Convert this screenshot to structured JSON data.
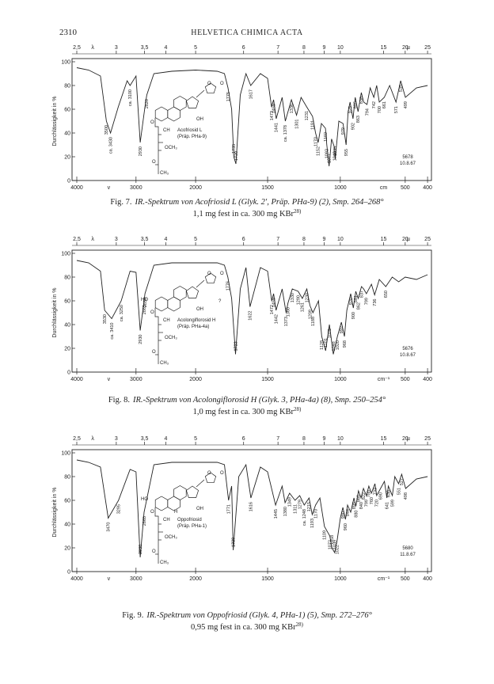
{
  "header": {
    "page_number": "2310",
    "journal": "HELVETICA CHIMICA ACTA"
  },
  "chart_data": [
    {
      "type": "line",
      "ylabel": "Durchlässigkeit in %",
      "xlabel": "v",
      "xunit": "cm",
      "x2label": "λ",
      "x2unit": "μ",
      "xlim": [
        4000,
        400
      ],
      "xticks": [
        4000,
        3000,
        2000,
        1500,
        1000,
        500,
        400
      ],
      "x2ticks": [
        {
          "value": 2.5,
          "label": "2,5"
        },
        3,
        {
          "value": 3.5,
          "label": "3,5"
        },
        4,
        5,
        6,
        7,
        8,
        9,
        10,
        15,
        20,
        25
      ],
      "ylim": [
        0,
        100
      ],
      "yticks": [
        0,
        20,
        40,
        60,
        80,
        100
      ],
      "color": "#222",
      "x": [
        4000,
        3800,
        3600,
        3500,
        3430,
        3300,
        3150,
        3100,
        3000,
        2930,
        2850,
        2820,
        2700,
        2400,
        2000,
        1850,
        1800,
        1775,
        1750,
        1735,
        1720,
        1690,
        1650,
        1617,
        1550,
        1500,
        1473,
        1459,
        1441,
        1400,
        1378,
        1336,
        1301,
        1270,
        1231,
        1191,
        1170,
        1152,
        1130,
        1102,
        1093,
        1077,
        1060,
        1040,
        1035,
        1010,
        979,
        955,
        940,
        925,
        902,
        885,
        863,
        838,
        820,
        794,
        770,
        742,
        720,
        700,
        661,
        620,
        571,
        535,
        499,
        450,
        400
      ],
      "values": [
        95,
        93,
        88,
        50,
        40,
        62,
        84,
        80,
        88,
        32,
        62,
        72,
        90,
        92,
        93,
        92,
        90,
        78,
        60,
        20,
        14,
        72,
        90,
        80,
        90,
        86,
        62,
        68,
        52,
        70,
        50,
        68,
        55,
        70,
        62,
        54,
        40,
        32,
        48,
        44,
        30,
        12,
        35,
        28,
        18,
        50,
        48,
        30,
        58,
        66,
        52,
        70,
        58,
        74,
        66,
        64,
        78,
        70,
        80,
        66,
        70,
        80,
        66,
        84,
        70,
        78,
        80
      ],
      "peak_x": [
        3500,
        3430,
        3100,
        2930,
        2820,
        1775,
        1735,
        1720,
        1617,
        1473,
        1459,
        1441,
        1378,
        1336,
        1301,
        1231,
        1191,
        1170,
        1152,
        1102,
        1093,
        1077,
        1040,
        1035,
        979,
        955,
        925,
        902,
        885,
        863,
        838,
        794,
        742,
        700,
        661,
        571,
        535,
        499
      ],
      "peak_labels": [
        "3500",
        "ca. 3430",
        "ca. 3100",
        "2930",
        "2820",
        "1775",
        "1735",
        "1720",
        "1617",
        "1473",
        "1459",
        "1441",
        "ca. 1378",
        "1336",
        "1301",
        "1231",
        "1191",
        "1170",
        "1152",
        "1102",
        "1093",
        "1077",
        "1040",
        "1035",
        "979",
        "955",
        "925",
        "902",
        "885",
        "863",
        "838",
        "794",
        "742",
        "700",
        "661",
        "571",
        "535",
        "499"
      ],
      "structure_labels": [
        "O",
        "O",
        "OH",
        "O",
        "CH",
        "OCH₃",
        "O",
        "CH₃",
        "Acofriosid L",
        "(Präp. PHa-9)"
      ],
      "stamp": [
        "5678",
        "10.8.67"
      ],
      "caption_label": "Fig. 7.",
      "caption": "IR.-Spektrum von Acofriosid L (Glyk. 2′, Präp. PHa-9) (2), Smp. 264–268°",
      "note": "1,1 mg fest in ca. 300 mg KBr",
      "note_ref": "28)"
    },
    {
      "type": "line",
      "ylabel": "Durchlässigkeit in %",
      "xlabel": "v",
      "xunit": "cm⁻¹",
      "x2label": "λ",
      "x2unit": "μ",
      "xlim": [
        4000,
        400
      ],
      "xticks": [
        4000,
        3000,
        2000,
        1500,
        1000,
        500,
        400
      ],
      "x2ticks": [
        {
          "value": 2.5,
          "label": "2,5"
        },
        3,
        {
          "value": 3.5,
          "label": "3,5"
        },
        4,
        5,
        6,
        7,
        8,
        9,
        10,
        15,
        20,
        25
      ],
      "ylim": [
        0,
        100
      ],
      "yticks": [
        0,
        20,
        40,
        60,
        80,
        100
      ],
      "color": "#222",
      "x": [
        4000,
        3800,
        3600,
        3530,
        3410,
        3250,
        3100,
        3000,
        2930,
        2865,
        2850,
        2700,
        2400,
        2000,
        1850,
        1800,
        1776,
        1750,
        1723,
        1690,
        1650,
        1622,
        1550,
        1500,
        1472,
        1459,
        1442,
        1400,
        1373,
        1360,
        1330,
        1290,
        1261,
        1230,
        1209,
        1188,
        1150,
        1128,
        1101,
        1075,
        1048,
        1020,
        992,
        968,
        950,
        920,
        900,
        881,
        862,
        837,
        820,
        799,
        760,
        736,
        700,
        650,
        600,
        550,
        500,
        450,
        400
      ],
      "values": [
        94,
        92,
        85,
        52,
        45,
        60,
        85,
        84,
        35,
        60,
        66,
        90,
        92,
        92,
        92,
        90,
        80,
        62,
        15,
        70,
        88,
        55,
        88,
        85,
        60,
        66,
        52,
        70,
        50,
        58,
        70,
        68,
        62,
        70,
        56,
        50,
        60,
        30,
        18,
        40,
        15,
        30,
        42,
        30,
        52,
        66,
        54,
        68,
        62,
        72,
        70,
        66,
        74,
        65,
        78,
        72,
        80,
        76,
        80,
        78,
        82
      ],
      "peak_x": [
        3530,
        3410,
        3250,
        2930,
        2865,
        2850,
        1776,
        1723,
        1622,
        1472,
        1459,
        1442,
        1373,
        1360,
        1330,
        1290,
        1261,
        1230,
        1209,
        1188,
        1128,
        1101,
        1075,
        1048,
        1020,
        992,
        968,
        920,
        900,
        881,
        862,
        837,
        799,
        736,
        650
      ],
      "peak_labels": [
        "3530",
        "ca. 3410",
        "ca. 3250",
        "2930",
        "2865",
        "2850",
        "1776",
        "1723",
        "1622",
        "1472",
        "1459",
        "1442",
        "1373",
        "1360",
        "1330",
        "1290",
        "1261",
        "1230",
        "1209",
        "1188",
        "1128",
        "1101",
        "1075",
        "1048",
        "1020",
        "992",
        "968",
        "920",
        "900",
        "881",
        "862",
        "837",
        "799",
        "736",
        "650"
      ],
      "structure_labels": [
        "HO",
        "O",
        "O",
        "OH",
        "O",
        "CH",
        "OCH₃",
        "O",
        "CH₃",
        "Acolongiflorosid H",
        "(Präp. PHa-4a)",
        "?"
      ],
      "stamp": [
        "5676",
        "10.8.67"
      ],
      "caption_label": "Fig. 8.",
      "caption": "IR.-Spektrum von Acolongiflorosid H (Glyk. 3, PHa-4a) (8), Smp. 250–254°",
      "note": "1,0 mg fest in ca. 300 mg KBr",
      "note_ref": "28)"
    },
    {
      "type": "line",
      "ylabel": "Durchlässigkeit in %",
      "xlabel": "v",
      "xunit": "cm⁻¹",
      "x2label": "λ",
      "x2unit": "μ",
      "xlim": [
        4000,
        400
      ],
      "xticks": [
        4000,
        3000,
        2000,
        1500,
        1000,
        500,
        400
      ],
      "x2ticks": [
        {
          "value": 2.5,
          "label": "2,5"
        },
        3,
        {
          "value": 3.5,
          "label": "3,5"
        },
        4,
        5,
        6,
        7,
        8,
        9,
        10,
        15,
        20,
        25
      ],
      "ylim": [
        0,
        100
      ],
      "yticks": [
        0,
        20,
        40,
        60,
        80,
        100
      ],
      "color": "#222",
      "x": [
        4000,
        3800,
        3600,
        3470,
        3295,
        3100,
        3000,
        2930,
        2865,
        2700,
        2400,
        2000,
        1850,
        1800,
        1771,
        1750,
        1739,
        1700,
        1650,
        1616,
        1550,
        1500,
        1445,
        1400,
        1380,
        1349,
        1311,
        1279,
        1248,
        1215,
        1193,
        1170,
        1140,
        1109,
        1072,
        1058,
        1039,
        1022,
        1000,
        980,
        960,
        944,
        920,
        895,
        880,
        860,
        840,
        822,
        799,
        780,
        760,
        733,
        720,
        690,
        660,
        641,
        630,
        599,
        580,
        551,
        527,
        498,
        450,
        400
      ],
      "values": [
        94,
        92,
        88,
        45,
        60,
        86,
        84,
        12,
        50,
        90,
        92,
        92,
        92,
        90,
        60,
        72,
        18,
        80,
        90,
        62,
        88,
        84,
        56,
        72,
        58,
        66,
        60,
        64,
        56,
        62,
        48,
        56,
        62,
        38,
        30,
        20,
        16,
        26,
        45,
        54,
        44,
        56,
        50,
        62,
        55,
        68,
        62,
        70,
        64,
        72,
        66,
        74,
        64,
        70,
        76,
        62,
        72,
        64,
        80,
        74,
        82,
        70,
        78,
        80
      ],
      "peak_x": [
        3470,
        3295,
        2930,
        2865,
        1771,
        1739,
        1616,
        1445,
        1380,
        1349,
        1311,
        1279,
        1248,
        1215,
        1193,
        1170,
        1109,
        1072,
        1058,
        1039,
        1022,
        980,
        960,
        944,
        895,
        880,
        860,
        840,
        822,
        799,
        780,
        760,
        733,
        720,
        690,
        641,
        630,
        599,
        551,
        527,
        498
      ],
      "peak_labels": [
        "3470",
        "3295",
        "2930",
        "2865",
        "1771",
        "1739",
        "1616",
        "1445",
        "1380",
        "1349",
        "1311",
        "1279",
        "ca. 1248",
        "1215",
        "1193",
        "1170",
        "1109",
        "1072",
        "1058",
        "1039",
        "1022",
        "980",
        "960",
        "944",
        "895",
        "880",
        "860",
        "840",
        "822",
        "799",
        "780",
        "760",
        "733",
        "720",
        "690",
        "641",
        "630",
        "599",
        "551",
        "527",
        "498"
      ],
      "structure_labels": [
        "HO",
        "H",
        "O",
        "O",
        "OH",
        "O",
        "CH",
        "OCH₃",
        "O",
        "CH₃",
        "Oppofriosid",
        "(Präp. PHa-1)"
      ],
      "stamp": [
        "5680",
        "11.8.67"
      ],
      "caption_label": "Fig. 9.",
      "caption": "IR.-Spektrum von Oppofriosid (Glyk. 4, PHa-1) (5), Smp. 272–276°",
      "note": "0,95 mg fest in ca. 300 mg KBr",
      "note_ref": "28)"
    }
  ]
}
